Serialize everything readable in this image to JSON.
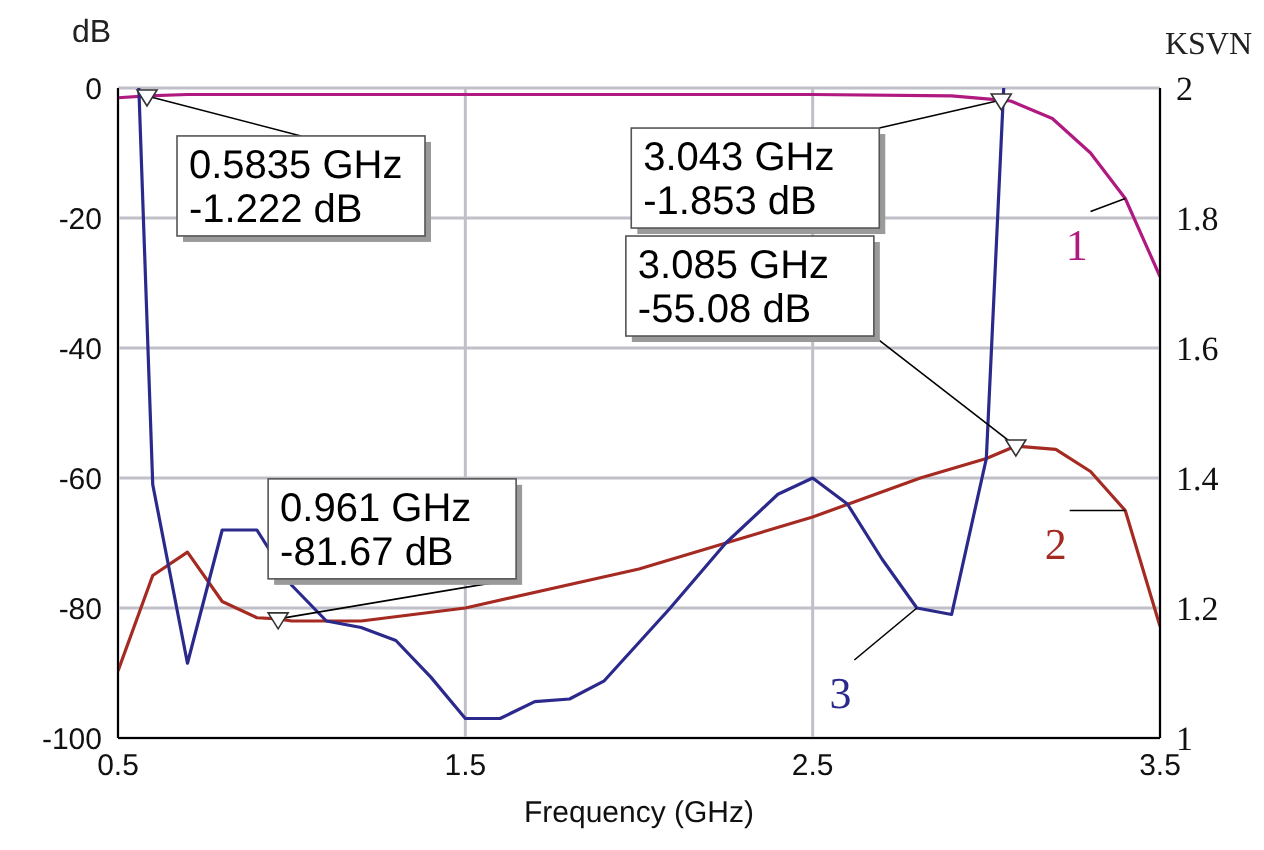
{
  "chart_data": {
    "type": "line",
    "xlabel": "Frequency (GHz)",
    "ylabel": "dB",
    "y2label": "KSVN",
    "xlim": [
      0.5,
      3.5
    ],
    "xticks": [
      0.5,
      1.5,
      2.5,
      3.5
    ],
    "ylim": [
      -100,
      0
    ],
    "yticks": [
      -100,
      -80,
      -60,
      -40,
      -20,
      0
    ],
    "y2lim": [
      1,
      2
    ],
    "y2ticks": [
      1,
      1.2,
      1.4,
      1.6,
      1.8,
      2
    ],
    "grid": true,
    "legend": false,
    "marker": "none",
    "line_style": "solid",
    "series": [
      {
        "name": "1",
        "color": "#b01a80",
        "x": [
          0.5,
          0.5835,
          0.7,
          1.0,
          1.5,
          2.0,
          2.5,
          2.9,
          3.043,
          3.07,
          3.19,
          3.3,
          3.4,
          3.5
        ],
        "values": [
          -1.5,
          -1.222,
          -1,
          -1,
          -1,
          -1,
          -1,
          -1.2,
          -1.853,
          -2,
          -4.7,
          -10,
          -17,
          -29
        ]
      },
      {
        "name": "2",
        "color": "#a52a22",
        "x": [
          0.5,
          0.6,
          0.7,
          0.8,
          0.9,
          0.961,
          1.0,
          1.2,
          1.5,
          2.0,
          2.5,
          2.81,
          3.0,
          3.085,
          3.2,
          3.3,
          3.4,
          3.5
        ],
        "values": [
          -89.7,
          -75,
          -71.4,
          -79,
          -81.5,
          -81.67,
          -82,
          -82,
          -80,
          -74,
          -66,
          -60,
          -57,
          -55.08,
          -55.6,
          -59,
          -65,
          -82.8
        ]
      },
      {
        "name": "3",
        "color": "#2b2a8c",
        "axis": "y2",
        "x": [
          0.56,
          0.6,
          0.7,
          0.8,
          0.9,
          1.0,
          1.1,
          1.2,
          1.3,
          1.4,
          1.5,
          1.6,
          1.7,
          1.8,
          1.9,
          2.09,
          2.25,
          2.4,
          2.5,
          2.6,
          2.7,
          2.8,
          2.9,
          3.0,
          3.05
        ],
        "values": [
          2,
          1.39,
          1.115,
          1.32,
          1.32,
          1.235,
          1.18,
          1.17,
          1.15,
          1.094,
          1.03,
          1.03,
          1.056,
          1.06,
          1.088,
          1.2,
          1.3,
          1.375,
          1.4,
          1.36,
          1.275,
          1.2,
          1.19,
          1.43,
          2
        ]
      }
    ],
    "annotations": [
      {
        "text": "0.5835 GHz\n-1.222 dB",
        "x": 0.5835,
        "y": -1.222
      },
      {
        "text": "3.043 GHz\n-1.853 dB",
        "x": 3.043,
        "y": -1.853
      },
      {
        "text": "0.961 GHz\n-81.67 dB",
        "x": 0.961,
        "y": -81.67
      },
      {
        "text": "3.085 GHz\n-55.08 dB",
        "x": 3.085,
        "y": -55.08
      }
    ]
  }
}
